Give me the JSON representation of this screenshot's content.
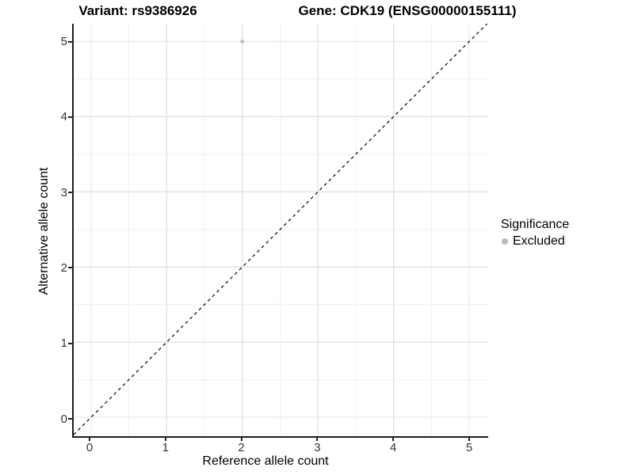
{
  "titles": {
    "variant": "Variant: rs9386926",
    "gene": "Gene: CDK19 (ENSG00000155111)"
  },
  "axes": {
    "x_label": "Reference allele count",
    "y_label": "Alternative allele count"
  },
  "legend": {
    "title": "Significance",
    "items": [
      {
        "label": "Excluded",
        "color": "#b9b9b9"
      }
    ]
  },
  "colors": {
    "point": "#bdbdbd",
    "grid_major": "#e4e4e4",
    "grid_minor": "#f0f0f0",
    "axis_line": "#1f1f1f",
    "reference_line": "#000000",
    "tick_text": "#333333"
  },
  "chart_data": {
    "type": "scatter",
    "title": "Variant: rs9386926 | Gene: CDK19 (ENSG00000155111)",
    "xlabel": "Reference allele count",
    "ylabel": "Alternative allele count",
    "x_ticks": [
      0,
      1,
      2,
      3,
      4,
      5
    ],
    "y_ticks": [
      0,
      1,
      2,
      3,
      4,
      5
    ],
    "xlim": [
      -0.25,
      5.25
    ],
    "ylim": [
      -0.25,
      5.25
    ],
    "grid": "major+minor",
    "legend_position": "right",
    "series": [
      {
        "name": "Excluded",
        "color": "#bdbdbd",
        "points": [
          {
            "x": 2,
            "y": 5
          }
        ]
      }
    ],
    "reference_line": {
      "type": "identity",
      "slope": 1,
      "intercept": 0,
      "style": "dashed",
      "color": "#000000"
    }
  }
}
